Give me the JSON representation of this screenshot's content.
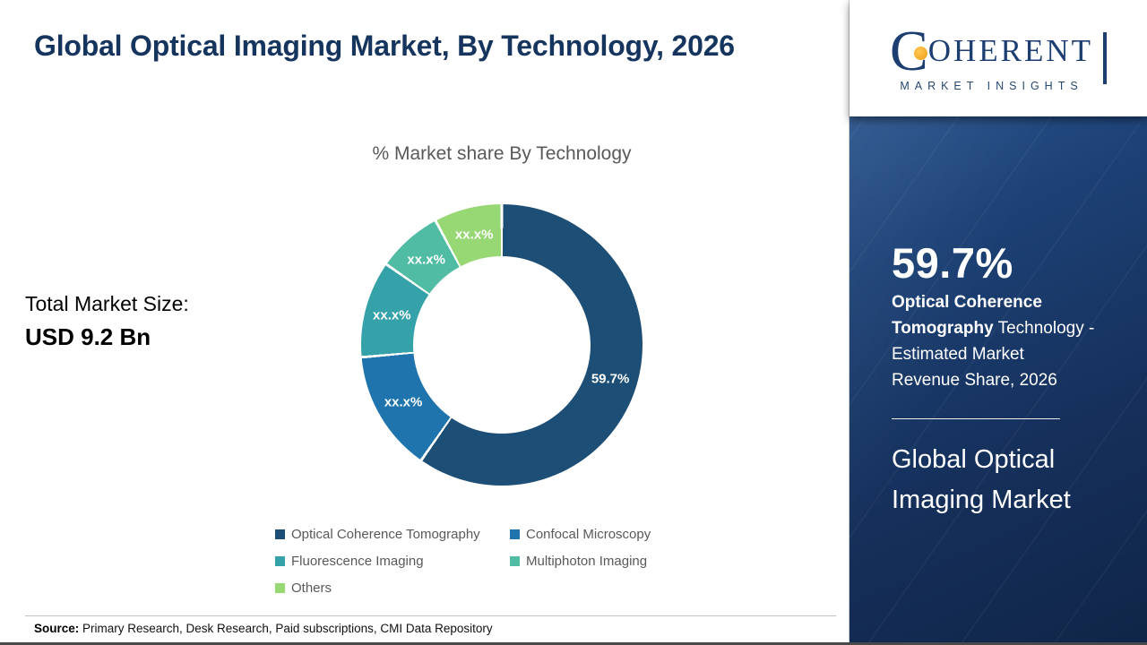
{
  "accent_colors": {
    "navy": "#16355e",
    "orange": "#f2a71d",
    "gray_text": "#595959",
    "sidebar_dark": "#16315d"
  },
  "header": {
    "title": "Global Optical Imaging Market, By Technology, 2026"
  },
  "main": {
    "chart_title": "% Market share By Technology",
    "total_market_label": "Total Market Size:",
    "total_market_value": "USD 9.2 Bn",
    "source_label": "Source:",
    "source_text": " Primary Research, Desk Research, Paid subscriptions, CMI Data Repository"
  },
  "sidebar": {
    "logo": {
      "letter_c": "C",
      "word_rest": "OHERENT",
      "subtitle": "MARKET INSIGHTS"
    },
    "stat_value": "59.7%",
    "stat_desc_bold": "Optical Coherence Tomography",
    "stat_desc_rest": " Technology - Estimated Market Revenue Share, 2026",
    "panel_title": "Global Optical Imaging Market"
  },
  "chart_data": {
    "type": "pie",
    "variant": "donut",
    "title": "% Market share By Technology",
    "legend_position": "bottom",
    "start_angle_deg": 0,
    "direction": "clockwise",
    "segments": [
      {
        "label": "Optical Coherence Tomography",
        "value": 59.7,
        "display": "59.7%",
        "estimated": false,
        "color": "#1d4e75"
      },
      {
        "label": "Confocal Microscopy",
        "value": 13.9,
        "display": "xx.x%",
        "estimated": true,
        "color": "#1f74ad"
      },
      {
        "label": "Fluorescence Imaging",
        "value": 11.1,
        "display": "xx.x%",
        "estimated": true,
        "color": "#35a1a8"
      },
      {
        "label": "Multiphoton Imaging",
        "value": 7.5,
        "display": "xx.x%",
        "estimated": true,
        "color": "#50bca4"
      },
      {
        "label": "Others",
        "value": 7.8,
        "display": "xx.x%",
        "estimated": true,
        "color": "#97d874"
      }
    ]
  }
}
